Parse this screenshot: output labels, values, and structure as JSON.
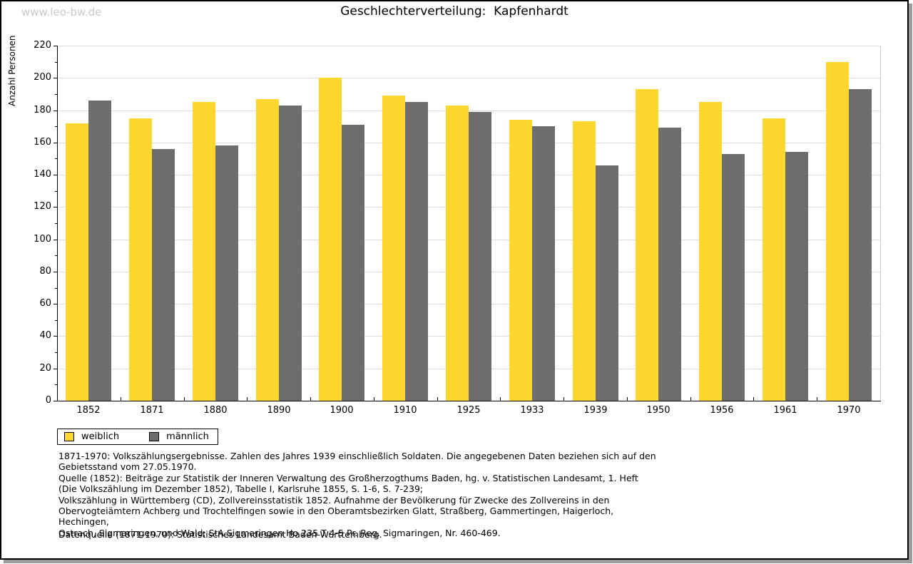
{
  "page": {
    "watermark": "www.leo-bw.de",
    "title": "Geschlechterverteilung:  Kapfenhardt"
  },
  "chart_data": {
    "type": "bar",
    "title": "Geschlechterverteilung: Kapfenhardt",
    "xlabel": "",
    "ylabel": "Anzahl Personen",
    "ylim": [
      0,
      220
    ],
    "ytick_step": 20,
    "yminortick_step": 10,
    "grid": true,
    "legend_position": "bottom-left",
    "categories": [
      "1852",
      "1871",
      "1880",
      "1890",
      "1900",
      "1910",
      "1925",
      "1933",
      "1939",
      "1950",
      "1956",
      "1961",
      "1970"
    ],
    "series": [
      {
        "name": "weiblich",
        "color": "#FDD72E",
        "values": [
          172,
          175,
          185,
          187,
          200,
          189,
          183,
          174,
          173,
          193,
          185,
          175,
          210
        ]
      },
      {
        "name": "männlich",
        "color": "#6D6D6D",
        "values": [
          186,
          156,
          158,
          183,
          171,
          185,
          179,
          170,
          146,
          169,
          153,
          154,
          193
        ]
      }
    ]
  },
  "legend": {
    "items": [
      {
        "label": "weiblich",
        "color": "#FDD72E"
      },
      {
        "label": "männlich",
        "color": "#6D6D6D"
      }
    ]
  },
  "footer": {
    "notes": "1871-1970: Volkszählungsergebnisse. Zahlen des Jahres 1939 einschließlich Soldaten. Die angegebenen Daten beziehen sich auf den\nGebietsstand vom 27.05.1970.\nQuelle (1852): Beiträge zur Statistik der Inneren Verwaltung des Großherzogthums Baden, hg. v. Statistischen Landesamt, 1. Heft\n(Die Volkszählung im Dezember 1852), Tabelle I, Karlsruhe 1855, S. 1-6, S. 7-239;\nVolkszählung in Württemberg (CD), Zollvereinsstatistik 1852. Aufnahme der Bevölkerung für Zwecke des Zollvereins in den\nObervogteiämtern Achberg und Trochtelfingen sowie in den Oberamtsbezirken Glatt, Straßberg, Gammertingen, Haigerloch, Hechingen,\nOstrach, Sigmaringen, und Wald; StA Sigmaringen Ho 235 T 4-5 Pr. Reg. Sigmaringen, Nr. 460-469.",
    "datasource": "Datenquelle (1871-1970): Statistisches Landesamt Baden-Württemberg."
  },
  "colors": {
    "grid": "#dddddd",
    "axis": "#000000",
    "plot_right_border": "#cccccc",
    "watermark": "#c9c9c9",
    "frame_shadow": "#9b9b9b"
  }
}
